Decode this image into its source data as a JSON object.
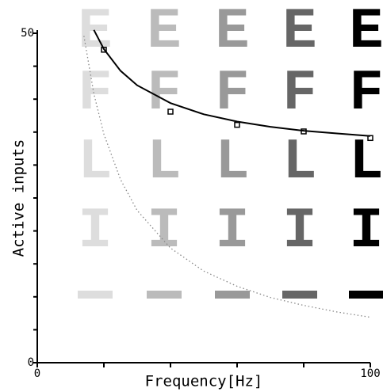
{
  "chart_data": {
    "type": "scatter",
    "xlabel": "Frequency[Hz]",
    "ylabel": "Active inputs",
    "xlim": [
      0,
      100
    ],
    "ylim": [
      0,
      50
    ],
    "xticks": [
      0,
      100
    ],
    "yticks": [
      0,
      50
    ],
    "minor_xticks": [
      20,
      40,
      60,
      80
    ],
    "minor_yticks": [
      5,
      10,
      15,
      20,
      25,
      30,
      35,
      40,
      45
    ],
    "series": [
      {
        "kind": "points",
        "color": "#000000",
        "x": [
          20,
          40,
          60,
          80,
          100
        ],
        "values": [
          47.5,
          38.1,
          36.1,
          35.1,
          34.1
        ]
      },
      {
        "kind": "solid",
        "color": "#000000",
        "x": [
          17,
          20,
          25,
          30,
          40,
          50,
          60,
          70,
          80,
          90,
          100
        ],
        "values": [
          50.5,
          47.6,
          44.3,
          42.1,
          39.4,
          37.7,
          36.6,
          35.8,
          35.2,
          34.8,
          34.4
        ]
      },
      {
        "kind": "dotted",
        "color": "#888888",
        "x": [
          14,
          17,
          20,
          25,
          30,
          40,
          50,
          60,
          70,
          80,
          90,
          100
        ],
        "values": [
          49.6,
          40.8,
          34.7,
          27.8,
          23.1,
          17.4,
          13.9,
          11.6,
          9.9,
          8.7,
          7.7,
          6.9
        ]
      }
    ],
    "background_letters": [
      "E",
      "F",
      "L",
      "I"
    ],
    "background_colors": [
      "#dddddd",
      "#bbbbbb",
      "#999999",
      "#666666",
      "#000000"
    ]
  }
}
